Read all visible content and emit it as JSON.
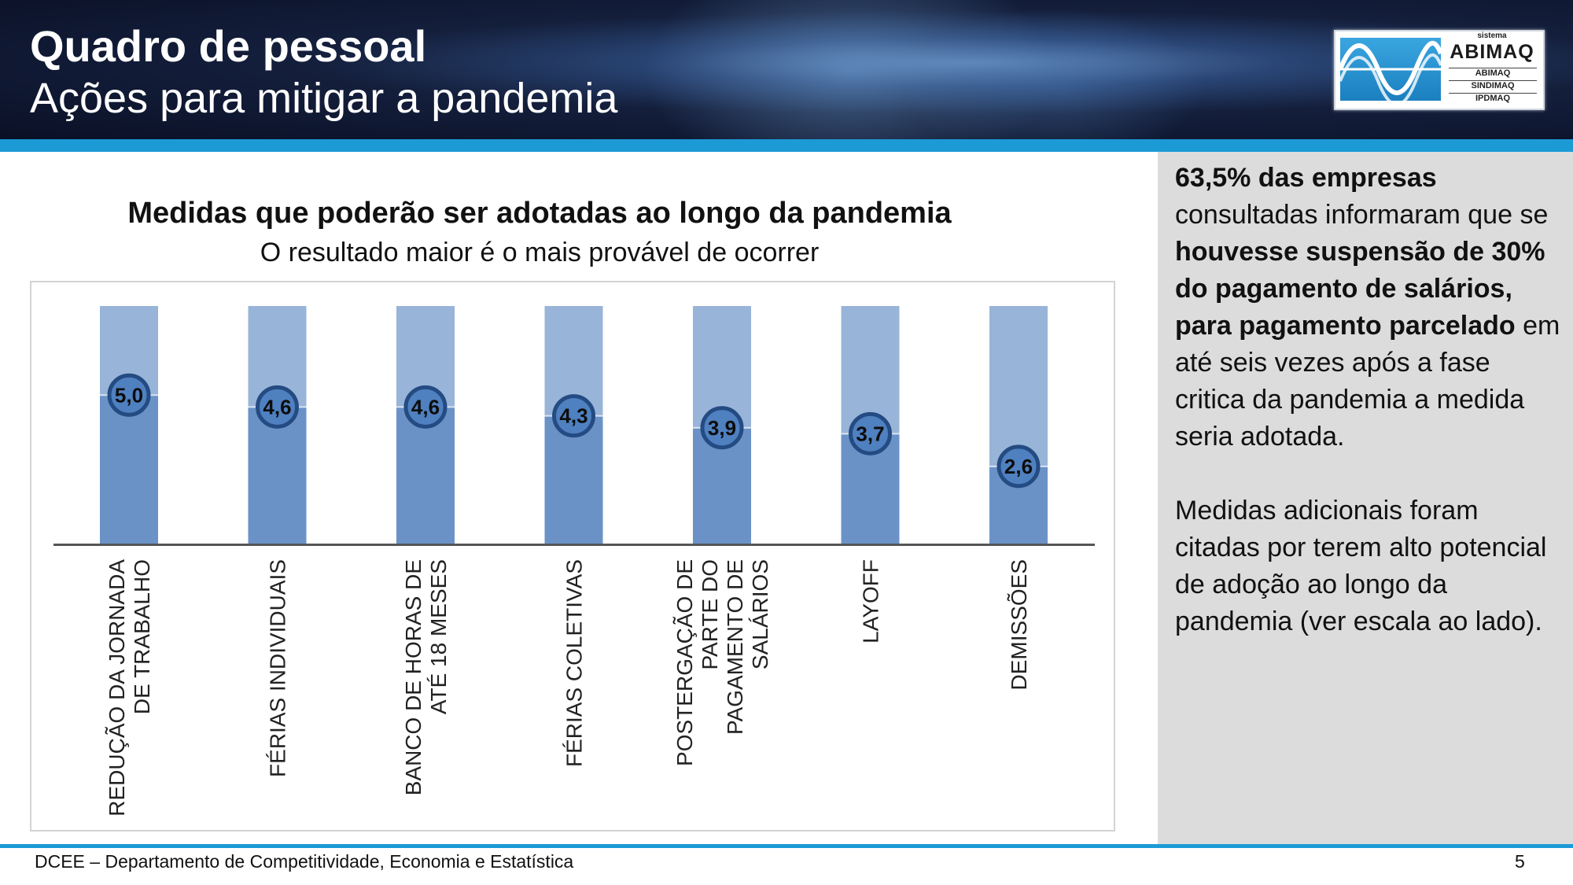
{
  "header": {
    "title": "Quadro de pessoal",
    "subtitle": "Ações para mitigar a pandemia",
    "logo": {
      "small": "sistema",
      "brand": "ABIMAQ",
      "lines": [
        "ABIMAQ",
        "SINDIMAQ",
        "IPDMAQ"
      ]
    }
  },
  "chart_data": {
    "type": "bar",
    "title": "Medidas que poderão ser adotadas ao longo da pandemia",
    "subtitle": "O resultado maior é o mais provável de ocorrer",
    "categories": [
      "REDUÇÃO DA JORNADA DE TRABALHO",
      "FÉRIAS INDIVIDUAIS",
      "BANCO DE HORAS DE ATÉ 18 MESES",
      "FÉRIAS COLETIVAS",
      "POSTERGAÇÃO DE PARTE DO PAGAMENTO DE SALÁRIOS",
      "LAYOFF",
      "DEMISSÕES"
    ],
    "category_lines": [
      [
        "REDUÇÃO DA JORNADA",
        "DE TRABALHO"
      ],
      [
        "FÉRIAS INDIVIDUAIS"
      ],
      [
        "BANCO DE HORAS DE",
        "ATÉ 18 MESES"
      ],
      [
        "FÉRIAS COLETIVAS"
      ],
      [
        "POSTERGAÇÃO DE",
        "PARTE DO",
        "PAGAMENTO DE",
        "SALÁRIOS"
      ],
      [
        "LAYOFF"
      ],
      [
        "DEMISSÕES"
      ]
    ],
    "values": [
      5.0,
      4.6,
      4.6,
      4.3,
      3.9,
      3.7,
      2.6
    ],
    "value_labels": [
      "5,0",
      "4,6",
      "4,6",
      "4,3",
      "3,9",
      "3,7",
      "2,6"
    ],
    "ylim": [
      0,
      8
    ],
    "grid": false,
    "legend": "none",
    "colors": {
      "bar": "#6a92c7",
      "bar_background": "#98b4d8",
      "marker": "#4f80c0",
      "marker_ring": "#244b82",
      "axis": "#555555"
    }
  },
  "side_panel": {
    "paragraph1": [
      {
        "text": "63,5% das empresas",
        "bold": true
      },
      {
        "text": " consultadas informaram que se ",
        "bold": false
      },
      {
        "text": "houvesse suspensão de 30% do pagamento de salários, para pagamento parcelado",
        "bold": true
      },
      {
        "text": " em até seis vezes após a fase critica da pandemia a medida seria adotada.",
        "bold": false
      }
    ],
    "paragraph2": "Medidas adicionais foram citadas por terem alto potencial de adoção ao longo da pandemia (ver escala ao lado)."
  },
  "footer": {
    "text": "DCEE – Departamento de Competitividade, Economia e Estatística",
    "page": "5"
  }
}
